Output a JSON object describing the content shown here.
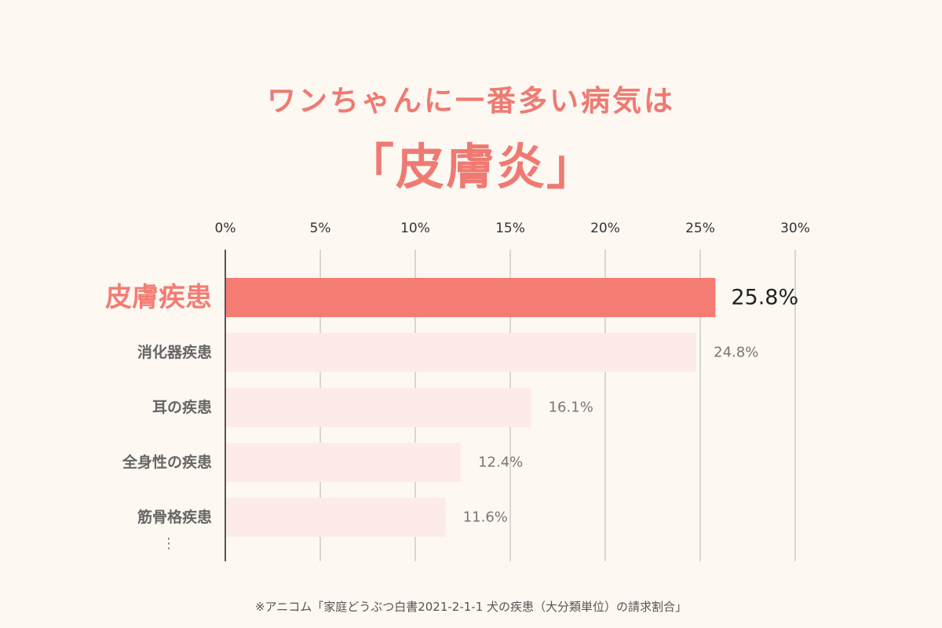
{
  "header": {
    "subtitle": "ワンちゃんに一番多い病気は",
    "title": "「皮膚炎」"
  },
  "chart_data": {
    "type": "bar",
    "orientation": "horizontal",
    "categories": [
      "皮膚疾患",
      "消化器疾患",
      "耳の疾患",
      "全身性の疾患",
      "筋骨格疾患"
    ],
    "values": [
      25.8,
      24.8,
      16.1,
      12.4,
      11.6
    ],
    "value_labels": [
      "25.8%",
      "24.8%",
      "16.1%",
      "12.4%",
      "11.6%"
    ],
    "highlight_index": 0,
    "xlim": [
      0,
      30
    ],
    "ticks": [
      0,
      5,
      10,
      15,
      20,
      25,
      30
    ],
    "tick_labels": [
      "0%",
      "5%",
      "10%",
      "15%",
      "20%",
      "25%",
      "30%"
    ],
    "grid": true,
    "colors": {
      "highlight_bar": "#f47c73",
      "bar": "#fdebea",
      "highlight_label": "#f47c73",
      "label": "#666666",
      "highlight_value": "#222222",
      "value": "#777777",
      "grid": "#d9d6d2",
      "axis": "#555555"
    }
  },
  "continuation_marker": "⋮",
  "footer": {
    "source": "※アニコム「家庭どうぶつ白書2021-2-1-1 犬の疾患（大分類単位）の請求割合」"
  }
}
